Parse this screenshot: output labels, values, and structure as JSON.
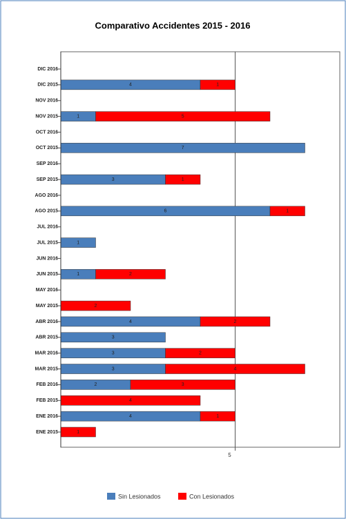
{
  "chart_data": {
    "type": "stacked-barh",
    "title": "Comparativo Accidentes 2015 - 2016",
    "categories": [
      "DIC 2016",
      "DIC 2015",
      "NOV 2016",
      "NOV 2015",
      "OCT 2016",
      "OCT 2015",
      "SEP 2016",
      "SEP 2015",
      "AGO 2016",
      "AGO 2015",
      "JUL 2016",
      "JUL 2015",
      "JUN 2016",
      "JUN 2015",
      "MAY 2016",
      "MAY 2015",
      "ABR 2016",
      "ABR 2015",
      "MAR 2016",
      "MAR 2015",
      "FEB 2016",
      "FEB 2015",
      "ENE 2016",
      "ENE 2015"
    ],
    "series": [
      {
        "name": "Sin Lesionados",
        "color": "#4a7ebb",
        "values": [
          0,
          4,
          0,
          1,
          0,
          7,
          0,
          3,
          0,
          6,
          0,
          1,
          0,
          1,
          0,
          0,
          4,
          3,
          3,
          3,
          2,
          0,
          4,
          0
        ]
      },
      {
        "name": "Con Lesionados",
        "color": "#ff0000",
        "values": [
          0,
          1,
          0,
          5,
          0,
          0,
          0,
          1,
          0,
          1,
          0,
          0,
          0,
          2,
          0,
          2,
          2,
          0,
          2,
          4,
          3,
          4,
          1,
          1
        ]
      }
    ],
    "xlim": [
      0,
      8
    ],
    "xticks": [
      5
    ],
    "grid": true,
    "legend": "bottom"
  }
}
